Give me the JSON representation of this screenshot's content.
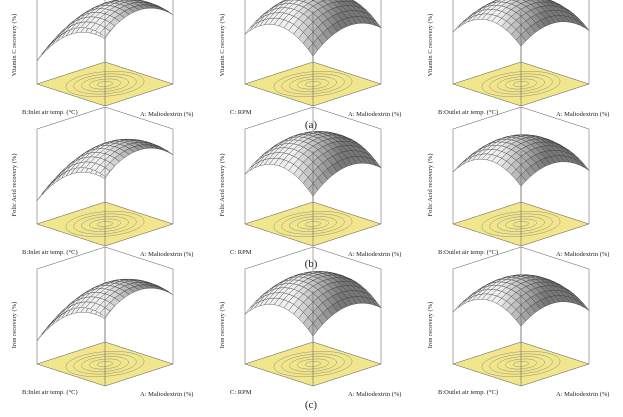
{
  "panels": [
    {
      "label": "(a)",
      "plots": [
        {
          "z_label": "Vitamin C recovery (%)",
          "y_label": "B:Inlet air temp. (°C)",
          "x_label": "A: Maltodextrin (%)"
        },
        {
          "z_label": "Vitamin C recovery (%)",
          "y_label": "C: RPM",
          "x_label": "A: Maltodextrin (%)"
        },
        {
          "z_label": "Vitamin C recovery (%)",
          "y_label": "B:Outlet air temp. (°C)",
          "x_label": "A: Maltodextrin (%)"
        }
      ]
    },
    {
      "label": "(b)",
      "plots": [
        {
          "z_label": "Folic Acid recovery (%)",
          "y_label": "B:Inlet air temp. (°C)",
          "x_label": "A: Maltodextrin (%)"
        },
        {
          "z_label": "Folic Acid recovery (%)",
          "y_label": "C: RPM",
          "x_label": "A: Maltodextrin (%)"
        },
        {
          "z_label": "Folic Acid recovery (%)",
          "y_label": "B:Outlet air temp. (°C)",
          "x_label": "A: Maltodextrin (%)"
        }
      ]
    },
    {
      "label": "(c)",
      "plots": [
        {
          "z_label": "Iron recovery (%)",
          "y_label": "B:Inlet air temp. (°C)",
          "x_label": "A: Maltodextrin (%)"
        },
        {
          "z_label": "Iron recovery (%)",
          "y_label": "C: RPM",
          "x_label": "A: Maltodextrin (%)"
        },
        {
          "z_label": "Iron recovery (%)",
          "y_label": "B:Outlet air temp. (°C)",
          "x_label": "A: Maltodextrin (%)"
        }
      ]
    }
  ]
}
